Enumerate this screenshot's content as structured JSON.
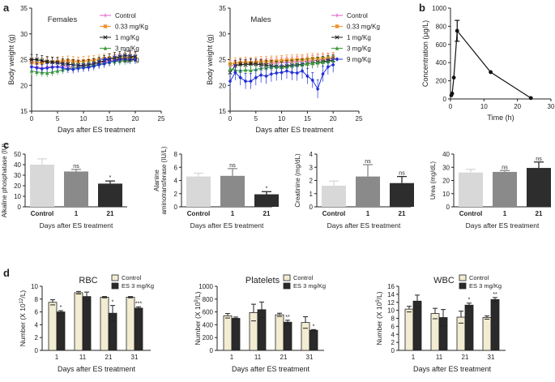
{
  "panel_letters": {
    "a": "a",
    "b": "b",
    "c": "c",
    "d": "d"
  },
  "colors": {
    "control": "#e056c9",
    "d033": "#f0922c",
    "d1": "#1a1a1a",
    "d3": "#3a9a3a",
    "d9": "#2030d8",
    "bar_control": "#d8d8d8",
    "bar_day1": "#8a8a8a",
    "bar_day21": "#2d2d2d",
    "bar_d_control": "#f2ecd2",
    "bar_d_es": "#2a2a2a"
  },
  "chart_data": [
    {
      "id": "a_females",
      "type": "line",
      "title": "Females",
      "xlabel": "Days after ES treatment",
      "ylabel": "Body weight (g)",
      "xlim": [
        0,
        25
      ],
      "ylim": [
        15,
        35
      ],
      "xticks": [
        0,
        5,
        10,
        15,
        20,
        25
      ],
      "yticks": [
        15,
        20,
        25,
        30,
        35
      ],
      "x": [
        0,
        1,
        2,
        3,
        4,
        5,
        6,
        7,
        8,
        9,
        10,
        11,
        12,
        13,
        14,
        15,
        16,
        17,
        18,
        19,
        20
      ],
      "series": [
        {
          "name": "Control",
          "color_key": "control",
          "marker": "+",
          "values": [
            23.5,
            23.6,
            23.4,
            23.5,
            23.7,
            23.5,
            23.8,
            23.6,
            23.4,
            23.6,
            23.8,
            24.0,
            24.2,
            24.4,
            24.6,
            24.8,
            25.0,
            25.2,
            25.4,
            25.6,
            25.7
          ],
          "errors": [
            0.8,
            0.8,
            0.8,
            0.8,
            0.8,
            0.8,
            0.8,
            0.8,
            0.8,
            0.8,
            0.8,
            0.8,
            0.8,
            0.8,
            0.8,
            0.8,
            0.9,
            0.9,
            0.9,
            0.9,
            0.9
          ]
        },
        {
          "name": "0.33 mg/Kg",
          "color_key": "d033",
          "marker": "square",
          "values": [
            24.4,
            24.3,
            24.4,
            24.6,
            24.5,
            24.6,
            24.7,
            24.8,
            24.7,
            24.6,
            24.7,
            24.8,
            24.9,
            25.0,
            25.2,
            25.3,
            25.2,
            25.3,
            25.4,
            25.4,
            25.5
          ],
          "errors": [
            0.9,
            0.9,
            0.9,
            0.9,
            0.9,
            0.9,
            0.9,
            0.9,
            0.9,
            0.9,
            0.9,
            0.9,
            0.9,
            0.9,
            0.9,
            0.9,
            0.9,
            0.9,
            0.9,
            0.9,
            0.9
          ]
        },
        {
          "name": "1 mg/Kg",
          "color_key": "d1",
          "marker": "x",
          "values": [
            25.0,
            25.0,
            24.8,
            24.6,
            24.5,
            24.4,
            24.2,
            24.1,
            24.0,
            23.9,
            23.9,
            24.0,
            24.2,
            24.5,
            24.8,
            25.1,
            25.4,
            25.6,
            25.8,
            25.7,
            25.6
          ],
          "errors": [
            1.0,
            1.0,
            1.0,
            1.0,
            1.0,
            1.0,
            1.0,
            1.0,
            1.0,
            1.0,
            1.0,
            1.0,
            1.0,
            1.0,
            1.0,
            1.0,
            1.0,
            1.0,
            1.0,
            1.0,
            1.0
          ]
        },
        {
          "name": "3 mg/Kg",
          "color_key": "d3",
          "marker": "triangle",
          "values": [
            22.8,
            22.6,
            22.5,
            22.4,
            22.6,
            22.8,
            23.0,
            23.2,
            23.4,
            23.5,
            23.6,
            23.7,
            23.9,
            24.1,
            24.3,
            24.5,
            24.6,
            24.7,
            24.8,
            24.9,
            25.0
          ],
          "errors": [
            0.8,
            0.8,
            0.8,
            0.8,
            0.8,
            0.8,
            0.8,
            0.8,
            0.8,
            0.8,
            0.8,
            0.8,
            0.8,
            0.8,
            0.8,
            0.8,
            0.8,
            0.8,
            0.8,
            0.8,
            0.8
          ]
        },
        {
          "name": "9 mg/Kg",
          "color_key": "d9",
          "marker": "diamond",
          "values": [
            23.6,
            23.4,
            23.2,
            23.4,
            23.5,
            23.6,
            23.4,
            23.2,
            23.1,
            23.3,
            23.4,
            23.5,
            23.7,
            24.0,
            24.2,
            24.5,
            24.8,
            25.0,
            25.1,
            25.0,
            25.0
          ],
          "errors": [
            0.8,
            0.8,
            0.8,
            0.8,
            0.8,
            0.8,
            0.8,
            0.8,
            0.8,
            0.8,
            0.8,
            0.8,
            0.8,
            0.8,
            0.8,
            0.8,
            0.8,
            0.8,
            0.8,
            0.8,
            0.8
          ]
        }
      ]
    },
    {
      "id": "a_males",
      "type": "line",
      "title": "Males",
      "xlabel": "Days after ES treatment",
      "ylabel": "Body weight (g)",
      "xlim": [
        0,
        25
      ],
      "ylim": [
        15,
        35
      ],
      "xticks": [
        0,
        5,
        10,
        15,
        20,
        25
      ],
      "yticks": [
        15,
        20,
        25,
        30,
        35
      ],
      "x": [
        0,
        1,
        2,
        3,
        4,
        5,
        6,
        7,
        8,
        9,
        10,
        11,
        12,
        13,
        14,
        15,
        16,
        17,
        18,
        19,
        20
      ],
      "series": [
        {
          "name": "Control",
          "color_key": "control",
          "marker": "+",
          "values": [
            23.8,
            23.9,
            24.0,
            24.1,
            24.0,
            24.1,
            24.2,
            24.2,
            24.3,
            24.3,
            24.4,
            24.5,
            24.5,
            24.6,
            24.7,
            24.7,
            24.8,
            24.9,
            25.0,
            25.1,
            25.2
          ],
          "errors": [
            1.0,
            1.0,
            1.0,
            1.0,
            1.0,
            1.0,
            1.0,
            1.0,
            1.0,
            1.0,
            1.0,
            1.0,
            1.0,
            1.0,
            1.0,
            1.0,
            1.0,
            1.0,
            1.0,
            1.0,
            1.0
          ]
        },
        {
          "name": "0.33 mg/Kg",
          "color_key": "d033",
          "marker": "square",
          "values": [
            24.2,
            24.3,
            24.4,
            24.5,
            24.4,
            24.5,
            24.6,
            24.6,
            24.7,
            24.7,
            24.8,
            24.9,
            24.9,
            25.0,
            25.0,
            25.1,
            25.2,
            25.2,
            25.3,
            25.3,
            25.4
          ],
          "errors": [
            1.0,
            1.0,
            1.0,
            1.0,
            1.0,
            1.0,
            1.0,
            1.0,
            1.0,
            1.0,
            1.0,
            1.0,
            1.0,
            1.0,
            1.0,
            1.0,
            1.0,
            1.0,
            1.0,
            1.0,
            1.0
          ]
        },
        {
          "name": "1 mg/Kg",
          "color_key": "d1",
          "marker": "x",
          "values": [
            22.5,
            23.8,
            24.1,
            24.0,
            24.2,
            24.1,
            24.0,
            23.9,
            23.8,
            23.7,
            23.6,
            23.8,
            23.9,
            24.0,
            24.1,
            24.2,
            24.3,
            24.5,
            24.6,
            24.8,
            24.9
          ],
          "errors": [
            1.0,
            1.0,
            1.0,
            1.0,
            1.0,
            1.0,
            1.0,
            1.0,
            1.0,
            1.0,
            1.0,
            1.0,
            1.0,
            1.0,
            1.0,
            1.0,
            1.0,
            1.0,
            1.0,
            1.0,
            1.0
          ]
        },
        {
          "name": "3 mg/Kg",
          "color_key": "d3",
          "marker": "triangle",
          "values": [
            23.2,
            23.0,
            22.8,
            23.0,
            22.9,
            23.1,
            23.3,
            23.4,
            23.5,
            23.6,
            23.5,
            23.6,
            23.8,
            23.9,
            24.0,
            24.2,
            24.3,
            24.4,
            24.5,
            24.6,
            24.8
          ],
          "errors": [
            1.0,
            1.0,
            1.0,
            1.0,
            1.0,
            1.0,
            1.0,
            1.0,
            1.0,
            1.0,
            1.0,
            1.0,
            1.0,
            1.0,
            1.0,
            1.0,
            1.0,
            1.0,
            1.0,
            1.0,
            1.0
          ]
        },
        {
          "name": "9 mg/Kg",
          "color_key": "d9",
          "marker": "diamond",
          "values": [
            20.8,
            22.5,
            21.5,
            20.8,
            20.8,
            21.5,
            22.0,
            21.8,
            22.2,
            22.4,
            22.5,
            22.8,
            22.5,
            22.4,
            22.8,
            21.8,
            21.0,
            19.3,
            22.2,
            23.6,
            24.0
          ],
          "errors": [
            1.5,
            1.5,
            1.5,
            1.5,
            1.5,
            1.5,
            1.5,
            1.5,
            1.5,
            1.5,
            1.5,
            1.5,
            1.5,
            1.5,
            1.5,
            1.5,
            1.5,
            1.8,
            1.5,
            1.5,
            1.5
          ]
        }
      ]
    },
    {
      "id": "b",
      "type": "line",
      "xlabel": "Time (h)",
      "ylabel": "Concentration (µg/L)",
      "xlim": [
        0,
        30
      ],
      "ylim": [
        0,
        1000
      ],
      "xticks": [
        0,
        10,
        20,
        30
      ],
      "yticks": [
        0,
        200,
        400,
        600,
        800,
        1000
      ],
      "x": [
        0.25,
        0.5,
        1,
        2,
        12,
        24
      ],
      "values": [
        40,
        60,
        235,
        750,
        295,
        10
      ],
      "errors": [
        0,
        0,
        0,
        115,
        0,
        0
      ]
    },
    {
      "id": "c1",
      "type": "bar",
      "ylabel": "Alkaline phosphatase (IU)",
      "xlabel": "Days after ES treatment",
      "categories": [
        "Control",
        "1",
        "21"
      ],
      "values": [
        40,
        33.5,
        22
      ],
      "errors": [
        5.5,
        2,
        2.5
      ],
      "sig": [
        "",
        "ns",
        "*"
      ],
      "ylim": [
        0,
        50
      ],
      "yticks": [
        0,
        10,
        20,
        30,
        40,
        50
      ]
    },
    {
      "id": "c2",
      "type": "bar",
      "ylabel": "Alanine aminotransferase (IU/L)",
      "xlabel": "Days after ES treatment",
      "categories": [
        "Control",
        "1",
        "21"
      ],
      "values": [
        4.6,
        4.7,
        1.9
      ],
      "errors": [
        0.5,
        1.1,
        0.4
      ],
      "sig": [
        "",
        "ns",
        "*"
      ],
      "ylim": [
        0,
        8
      ],
      "yticks": [
        0,
        2,
        4,
        6,
        8
      ]
    },
    {
      "id": "c3",
      "type": "bar",
      "ylabel": "Creatinine (mg/dL)",
      "xlabel": "Days after ES treatment",
      "categories": [
        "Control",
        "1",
        "21"
      ],
      "values": [
        1.6,
        2.3,
        1.8
      ],
      "errors": [
        0.35,
        0.9,
        0.5
      ],
      "sig": [
        "",
        "ns",
        "ns"
      ],
      "ylim": [
        0,
        4
      ],
      "yticks": [
        0,
        1,
        2,
        3,
        4
      ]
    },
    {
      "id": "c4",
      "type": "bar",
      "ylabel": "Urea (mg/dL)",
      "xlabel": "Days after ES treatment",
      "categories": [
        "Control",
        "1",
        "21"
      ],
      "values": [
        26,
        26.5,
        29.5
      ],
      "errors": [
        2.5,
        1.0,
        4.5
      ],
      "sig": [
        "",
        "ns",
        "ns"
      ],
      "ylim": [
        0,
        40
      ],
      "yticks": [
        0,
        10,
        20,
        30,
        40
      ]
    },
    {
      "id": "d_rbc",
      "type": "bar",
      "title": "RBC",
      "ylabel_main": "Number (X 10",
      "ylabel_sup": "12",
      "ylabel_tail": "/L)",
      "xlabel": "Days after ES treatment",
      "categories": [
        "1",
        "11",
        "21",
        "31"
      ],
      "ylim": [
        0,
        10
      ],
      "yticks": [
        0,
        2,
        4,
        6,
        8,
        10
      ],
      "legend": [
        "Control",
        "ES 3 mg/Kg"
      ],
      "series": [
        {
          "name": "Control",
          "values": [
            7.5,
            9.0,
            8.3,
            8.3
          ],
          "errors": [
            0.4,
            0.2,
            0.1,
            0.1
          ]
        },
        {
          "name": "ES 3 mg/Kg",
          "values": [
            6.0,
            8.4,
            5.8,
            6.6
          ],
          "errors": [
            0.2,
            0.7,
            1.2,
            0.2
          ]
        }
      ],
      "sig": [
        "*",
        "",
        "*",
        "***"
      ]
    },
    {
      "id": "d_plt",
      "type": "bar",
      "title": "Platelets",
      "ylabel_main": "Number (X 10",
      "ylabel_sup": "9",
      "ylabel_tail": "/L)",
      "xlabel": "Days after ES treatment",
      "categories": [
        "1",
        "11",
        "21",
        "31"
      ],
      "ylim": [
        0,
        1000
      ],
      "yticks": [
        0,
        200,
        400,
        600,
        800,
        1000
      ],
      "legend": [
        "Control",
        "ES 3 mg/Kg"
      ],
      "series": [
        {
          "name": "Control",
          "values": [
            540,
            590,
            555,
            435
          ],
          "errors": [
            35,
            130,
            25,
            90
          ]
        },
        {
          "name": "ES 3 mg/Kg",
          "values": [
            500,
            635,
            440,
            315
          ],
          "errors": [
            20,
            120,
            30,
            10
          ]
        }
      ],
      "sig": [
        "",
        "",
        "**",
        "*"
      ]
    },
    {
      "id": "d_wbc",
      "type": "bar",
      "title": "WBC",
      "ylabel_main": "Number (X 10",
      "ylabel_sup": "9",
      "ylabel_tail": "/L)",
      "xlabel": "Days after ES treatment",
      "categories": [
        "1",
        "11",
        "21",
        "31"
      ],
      "ylim": [
        0,
        16
      ],
      "yticks": [
        0,
        2,
        4,
        6,
        8,
        10,
        12,
        14,
        16
      ],
      "legend": [
        "Control",
        "ES 3 mg/Kg"
      ],
      "series": [
        {
          "name": "Control",
          "values": [
            10.3,
            9.2,
            8.3,
            8.2
          ],
          "errors": [
            0.7,
            1.3,
            1.5,
            0.4
          ]
        },
        {
          "name": "ES 3 mg/Kg",
          "values": [
            12.3,
            8.2,
            11.3,
            12.7
          ],
          "errors": [
            1.5,
            2.0,
            0.5,
            0.5
          ]
        }
      ],
      "sig": [
        "",
        "",
        "*",
        "**"
      ]
    }
  ]
}
